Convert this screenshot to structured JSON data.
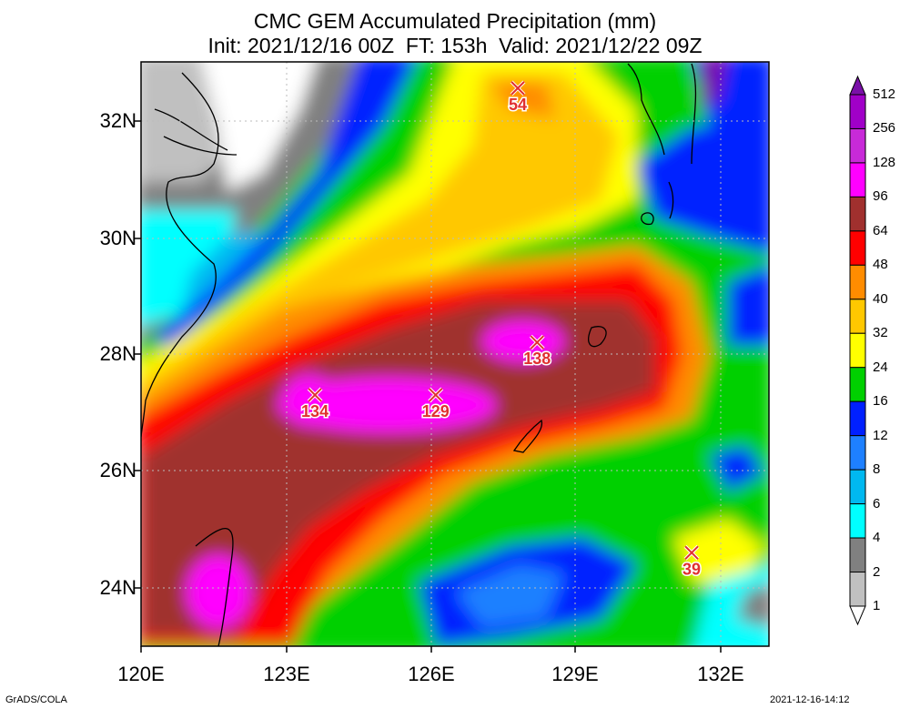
{
  "header": {
    "title_line1": "CMC GEM Accumulated Precipitation (mm)",
    "title_line2": "Init: 2021/12/16 00Z  FT: 153h  Valid: 2021/12/22 09Z"
  },
  "map": {
    "lon_range": [
      120,
      133
    ],
    "lat_range": [
      23,
      33
    ],
    "y_ticks": [
      "32N",
      "30N",
      "28N",
      "26N",
      "24N"
    ],
    "x_ticks": [
      "120E",
      "123E",
      "126E",
      "129E",
      "132E"
    ],
    "markers": [
      {
        "value": "54",
        "lon": 127.8,
        "lat": 32.55
      },
      {
        "value": "138",
        "lon": 128.2,
        "lat": 28.2
      },
      {
        "value": "134",
        "lon": 123.6,
        "lat": 27.3
      },
      {
        "value": "129",
        "lon": 126.1,
        "lat": 27.3
      },
      {
        "value": "39",
        "lon": 131.4,
        "lat": 24.6
      }
    ]
  },
  "colorbar": {
    "levels": [
      "512",
      "256",
      "128",
      "96",
      "64",
      "48",
      "40",
      "32",
      "24",
      "16",
      "12",
      "8",
      "6",
      "4",
      "2",
      "1"
    ],
    "colors": [
      "#7a10a8",
      "#a000c8",
      "#c82ad8",
      "#ff00ff",
      "#a0302e",
      "#ff0000",
      "#ff8c00",
      "#ffc800",
      "#ffff00",
      "#00d000",
      "#0020ff",
      "#1e80ff",
      "#00b8f0",
      "#00ffff",
      "#808080",
      "#c0c0c0"
    ]
  },
  "footer": {
    "left": "GrADS/COLA",
    "right": "2021-12-16-14:12"
  }
}
